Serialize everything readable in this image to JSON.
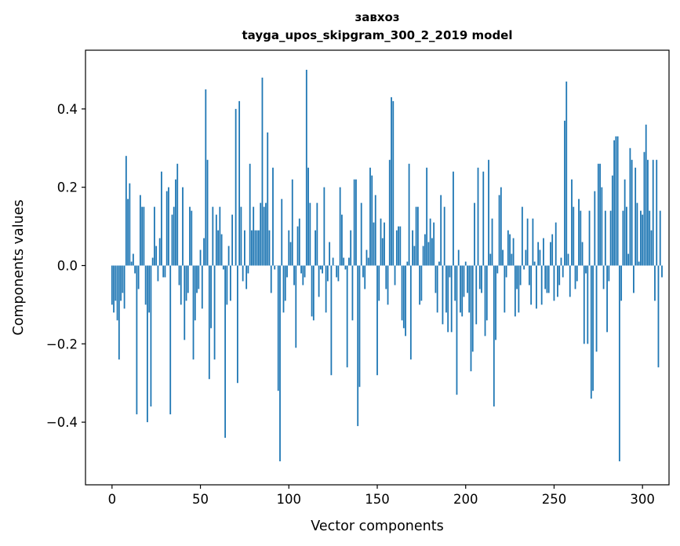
{
  "chart_data": {
    "type": "bar",
    "title_line1": "завхоз",
    "title_line2": "tayga_upos_skipgram_300_2_2019 model",
    "xlabel": "Vector components",
    "ylabel": "Components values",
    "xlim": [
      -15,
      315
    ],
    "ylim": [
      -0.56,
      0.55
    ],
    "xticks": [
      0,
      50,
      100,
      150,
      200,
      250,
      300
    ],
    "xtick_labels": [
      "0",
      "50",
      "100",
      "150",
      "200",
      "250",
      "300"
    ],
    "yticks": [
      -0.4,
      -0.2,
      0.0,
      0.2,
      0.4
    ],
    "ytick_labels": [
      "−0.4",
      "−0.2",
      "0.0",
      "0.2",
      "0.4"
    ],
    "bar_color": "#1f77b4",
    "values": [
      -0.1,
      -0.12,
      -0.09,
      -0.14,
      -0.24,
      -0.09,
      -0.07,
      -0.11,
      0.28,
      0.17,
      0.21,
      0.01,
      0.03,
      -0.02,
      -0.38,
      -0.06,
      0.18,
      0.15,
      0.15,
      -0.1,
      -0.4,
      -0.12,
      -0.36,
      0.02,
      0.15,
      0.05,
      -0.04,
      0.07,
      0.24,
      -0.03,
      -0.03,
      0.19,
      0.2,
      -0.38,
      0.13,
      0.15,
      0.22,
      0.26,
      -0.05,
      -0.1,
      0.2,
      -0.19,
      -0.09,
      -0.07,
      0.15,
      0.14,
      -0.24,
      -0.14,
      -0.07,
      -0.06,
      0.04,
      -0.11,
      0.07,
      0.45,
      0.27,
      -0.29,
      -0.16,
      0.15,
      -0.24,
      0.13,
      0.09,
      0.15,
      0.08,
      -0.01,
      -0.44,
      -0.1,
      0.05,
      -0.09,
      0.13,
      0.0,
      0.4,
      -0.3,
      0.42,
      0.15,
      -0.04,
      0.09,
      -0.06,
      -0.02,
      0.26,
      0.09,
      0.15,
      0.09,
      0.09,
      0.09,
      0.16,
      0.48,
      0.15,
      0.16,
      0.34,
      0.09,
      -0.07,
      0.25,
      -0.01,
      0.0,
      -0.32,
      -0.5,
      0.17,
      -0.12,
      -0.09,
      -0.03,
      0.09,
      0.06,
      0.22,
      -0.05,
      -0.21,
      0.1,
      0.12,
      -0.02,
      -0.05,
      -0.03,
      0.5,
      0.25,
      0.16,
      -0.13,
      -0.14,
      0.09,
      0.16,
      -0.08,
      -0.01,
      -0.02,
      0.2,
      -0.12,
      -0.04,
      0.06,
      -0.28,
      0.02,
      0.0,
      -0.03,
      -0.04,
      0.2,
      0.13,
      0.02,
      -0.01,
      -0.26,
      0.02,
      0.09,
      -0.14,
      0.22,
      0.22,
      -0.41,
      -0.31,
      0.16,
      -0.03,
      -0.06,
      0.04,
      0.02,
      0.25,
      0.23,
      0.11,
      0.18,
      -0.28,
      -0.09,
      0.12,
      0.07,
      0.11,
      -0.06,
      -0.1,
      0.27,
      0.43,
      0.42,
      -0.05,
      0.09,
      0.1,
      0.1,
      -0.14,
      -0.16,
      -0.18,
      0.01,
      0.26,
      -0.24,
      0.09,
      0.05,
      0.15,
      0.15,
      -0.1,
      -0.09,
      0.05,
      0.08,
      0.25,
      0.06,
      0.12,
      0.07,
      0.11,
      -0.07,
      -0.12,
      0.01,
      0.18,
      -0.15,
      0.15,
      -0.12,
      -0.17,
      -0.03,
      -0.17,
      0.24,
      -0.09,
      -0.33,
      0.04,
      -0.12,
      -0.13,
      -0.08,
      0.01,
      -0.07,
      -0.12,
      -0.27,
      -0.22,
      0.16,
      -0.15,
      0.25,
      -0.06,
      -0.07,
      0.24,
      -0.18,
      -0.14,
      0.27,
      0.03,
      0.12,
      -0.36,
      -0.19,
      -0.02,
      0.18,
      0.2,
      0.04,
      -0.12,
      -0.03,
      0.09,
      0.08,
      0.03,
      0.07,
      -0.13,
      -0.06,
      -0.12,
      -0.05,
      0.15,
      -0.01,
      0.04,
      0.12,
      -0.05,
      -0.1,
      0.12,
      0.01,
      -0.11,
      0.06,
      0.04,
      -0.1,
      0.07,
      -0.06,
      -0.07,
      -0.07,
      0.06,
      0.08,
      -0.09,
      0.11,
      -0.08,
      -0.05,
      0.02,
      -0.03,
      0.37,
      0.47,
      0.03,
      -0.08,
      0.22,
      0.15,
      -0.06,
      -0.04,
      0.17,
      0.14,
      0.06,
      -0.2,
      -0.02,
      -0.2,
      0.14,
      -0.34,
      -0.32,
      0.19,
      -0.22,
      0.26,
      0.26,
      0.2,
      -0.06,
      0.14,
      -0.17,
      -0.04,
      0.14,
      0.23,
      0.32,
      0.33,
      0.33,
      -0.5,
      -0.09,
      0.14,
      0.22,
      0.15,
      0.03,
      0.3,
      0.27,
      -0.07,
      0.25,
      0.16,
      0.01,
      0.14,
      0.13,
      0.29,
      0.36,
      0.27,
      0.14,
      0.09,
      0.27,
      -0.09,
      0.27,
      -0.26,
      0.14,
      -0.03
    ]
  }
}
